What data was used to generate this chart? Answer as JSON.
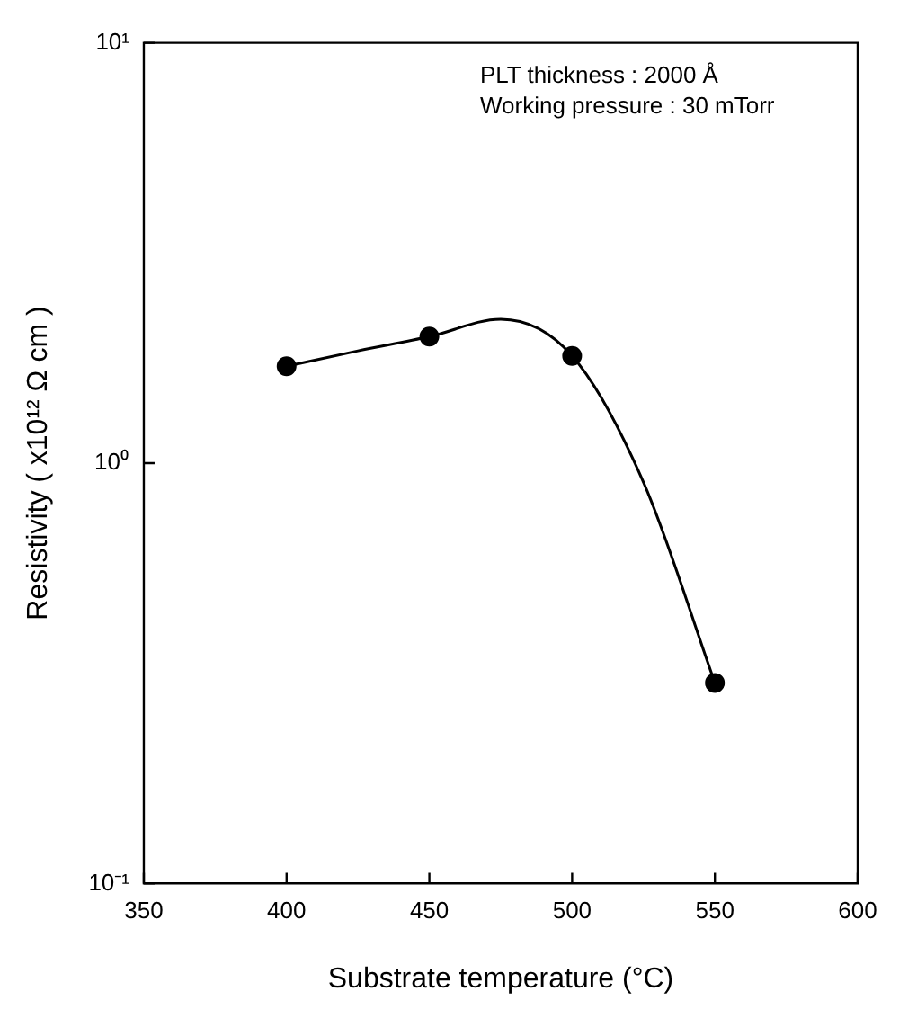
{
  "chart_data": {
    "type": "scatter",
    "xlabel": "Substrate temperature (°C)",
    "ylabel": "Resistivity ( x10¹² Ω cm )",
    "annotations": [
      "PLT thickness : 2000 Å",
      "Working pressure : 30 mTorr"
    ],
    "log": "y",
    "grid": false,
    "legend": false,
    "marker": "circle",
    "xlim": [
      350,
      600
    ],
    "xticks": [
      350,
      400,
      450,
      500,
      550,
      600
    ],
    "ylim": [
      0.1,
      10
    ],
    "yticks": [
      {
        "value": 0.1,
        "label": "10⁻¹"
      },
      {
        "value": 1,
        "label": "10⁰"
      },
      {
        "value": 10,
        "label": "10¹"
      }
    ],
    "series": [
      {
        "type": "scatter",
        "color": "#000000",
        "x": [
          400,
          450,
          500,
          550
        ],
        "values": [
          1.7,
          2.0,
          1.8,
          0.3
        ]
      },
      {
        "type": "line",
        "color": "#000000",
        "marker": "none",
        "x": [
          400,
          425,
          450,
          475,
          500,
          525,
          550
        ],
        "values": [
          1.7,
          1.85,
          2.0,
          2.2,
          1.8,
          0.9,
          0.3
        ]
      }
    ]
  }
}
